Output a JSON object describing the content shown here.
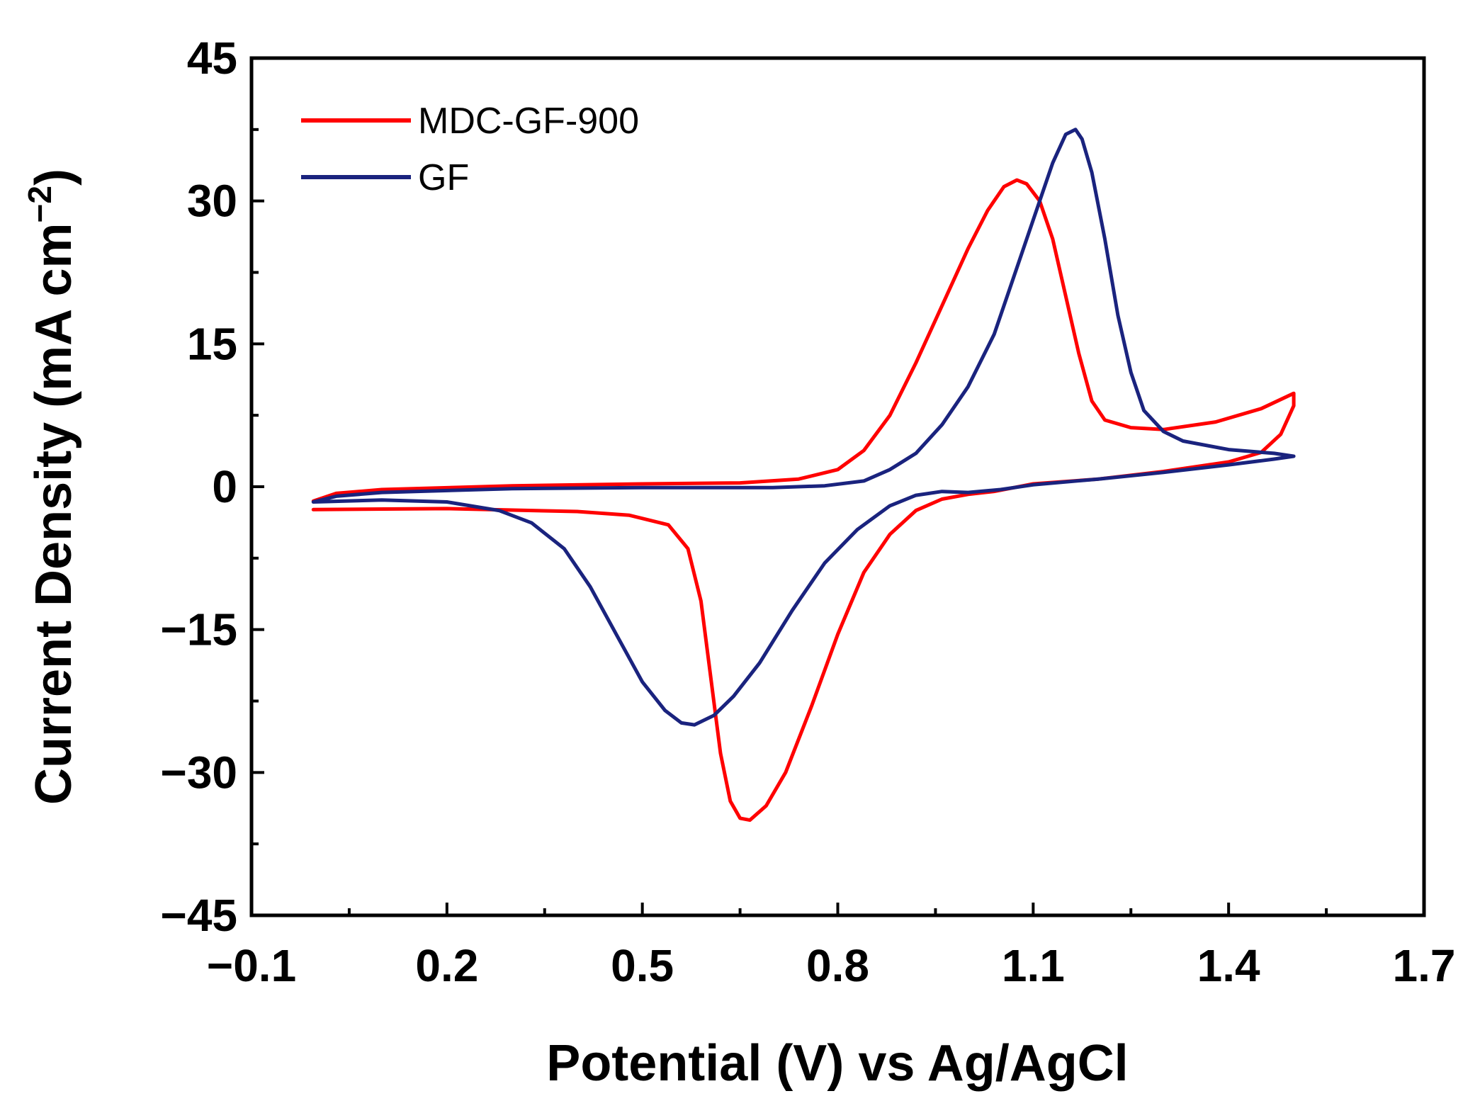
{
  "chart_data": {
    "type": "line",
    "title": "",
    "xlabel": "Potential (V) vs Ag/AgCl",
    "ylabel": "Current Density (mA cm",
    "ylabel_sup": "−2",
    "ylabel_close": ")",
    "xlim": [
      -0.1,
      1.7
    ],
    "ylim": [
      -45,
      45
    ],
    "x_ticks": [
      -0.1,
      0.2,
      0.5,
      0.8,
      1.1,
      1.4,
      1.7
    ],
    "x_tick_labels": [
      "−0.1",
      "0.2",
      "0.5",
      "0.8",
      "1.1",
      "1.4",
      "1.7"
    ],
    "x_minor_ticks": [
      0.05,
      0.35,
      0.65,
      0.95,
      1.25,
      1.55
    ],
    "y_ticks": [
      45,
      30,
      15,
      0,
      -15,
      -30,
      -45
    ],
    "y_tick_labels": [
      "45",
      "30",
      "15",
      "0",
      "−15",
      "−30",
      "−45"
    ],
    "y_minor_ticks": [
      37.5,
      22.5,
      7.5,
      -7.5,
      -22.5,
      -37.5
    ],
    "legend_position": "top-left",
    "series": [
      {
        "name": "MDC-GF-900",
        "color": "#ff0000",
        "points": [
          [
            -0.005,
            -2.4
          ],
          [
            0.2,
            -2.3
          ],
          [
            0.4,
            -2.6
          ],
          [
            0.48,
            -3.0
          ],
          [
            0.54,
            -4.0
          ],
          [
            0.57,
            -6.5
          ],
          [
            0.59,
            -12.0
          ],
          [
            0.605,
            -20.0
          ],
          [
            0.62,
            -28.0
          ],
          [
            0.635,
            -33.0
          ],
          [
            0.65,
            -34.8
          ],
          [
            0.665,
            -35.0
          ],
          [
            0.69,
            -33.5
          ],
          [
            0.72,
            -30.0
          ],
          [
            0.76,
            -23.0
          ],
          [
            0.8,
            -15.5
          ],
          [
            0.84,
            -9.0
          ],
          [
            0.88,
            -5.0
          ],
          [
            0.92,
            -2.5
          ],
          [
            0.96,
            -1.3
          ],
          [
            1.0,
            -0.8
          ],
          [
            1.04,
            -0.5
          ],
          [
            1.1,
            0.3
          ],
          [
            1.2,
            0.8
          ],
          [
            1.3,
            1.6
          ],
          [
            1.4,
            2.6
          ],
          [
            1.45,
            3.6
          ],
          [
            1.48,
            5.5
          ],
          [
            1.5,
            8.5
          ],
          [
            1.5,
            9.8
          ],
          [
            1.45,
            8.2
          ],
          [
            1.38,
            6.8
          ],
          [
            1.3,
            6.0
          ],
          [
            1.25,
            6.2
          ],
          [
            1.21,
            7.0
          ],
          [
            1.19,
            9.0
          ],
          [
            1.17,
            14.0
          ],
          [
            1.15,
            20.0
          ],
          [
            1.13,
            26.0
          ],
          [
            1.11,
            30.0
          ],
          [
            1.09,
            31.8
          ],
          [
            1.075,
            32.2
          ],
          [
            1.055,
            31.5
          ],
          [
            1.03,
            29.0
          ],
          [
            1.0,
            25.0
          ],
          [
            0.96,
            19.0
          ],
          [
            0.92,
            13.0
          ],
          [
            0.88,
            7.5
          ],
          [
            0.84,
            3.8
          ],
          [
            0.8,
            1.8
          ],
          [
            0.74,
            0.8
          ],
          [
            0.65,
            0.4
          ],
          [
            0.5,
            0.3
          ],
          [
            0.3,
            0.1
          ],
          [
            0.1,
            -0.3
          ],
          [
            0.03,
            -0.7
          ],
          [
            -0.005,
            -1.5
          ]
        ]
      },
      {
        "name": "GF",
        "color": "#1a237e",
        "points": [
          [
            -0.005,
            -1.6
          ],
          [
            0.1,
            -1.4
          ],
          [
            0.2,
            -1.6
          ],
          [
            0.28,
            -2.5
          ],
          [
            0.33,
            -3.8
          ],
          [
            0.38,
            -6.5
          ],
          [
            0.42,
            -10.5
          ],
          [
            0.46,
            -15.5
          ],
          [
            0.5,
            -20.5
          ],
          [
            0.535,
            -23.5
          ],
          [
            0.56,
            -24.8
          ],
          [
            0.58,
            -25.0
          ],
          [
            0.61,
            -24.0
          ],
          [
            0.64,
            -22.0
          ],
          [
            0.68,
            -18.5
          ],
          [
            0.73,
            -13.0
          ],
          [
            0.78,
            -8.0
          ],
          [
            0.83,
            -4.5
          ],
          [
            0.88,
            -2.0
          ],
          [
            0.92,
            -0.9
          ],
          [
            0.96,
            -0.5
          ],
          [
            1.0,
            -0.6
          ],
          [
            1.05,
            -0.3
          ],
          [
            1.1,
            0.2
          ],
          [
            1.2,
            0.8
          ],
          [
            1.3,
            1.5
          ],
          [
            1.4,
            2.3
          ],
          [
            1.47,
            2.9
          ],
          [
            1.5,
            3.2
          ],
          [
            1.47,
            3.5
          ],
          [
            1.4,
            3.9
          ],
          [
            1.33,
            4.8
          ],
          [
            1.3,
            5.8
          ],
          [
            1.27,
            8.0
          ],
          [
            1.25,
            12.0
          ],
          [
            1.23,
            18.0
          ],
          [
            1.21,
            26.0
          ],
          [
            1.19,
            33.0
          ],
          [
            1.175,
            36.5
          ],
          [
            1.165,
            37.5
          ],
          [
            1.15,
            37.0
          ],
          [
            1.13,
            34.0
          ],
          [
            1.1,
            28.0
          ],
          [
            1.07,
            22.0
          ],
          [
            1.04,
            16.0
          ],
          [
            1.0,
            10.5
          ],
          [
            0.96,
            6.5
          ],
          [
            0.92,
            3.5
          ],
          [
            0.88,
            1.8
          ],
          [
            0.84,
            0.6
          ],
          [
            0.78,
            0.1
          ],
          [
            0.7,
            -0.1
          ],
          [
            0.5,
            -0.1
          ],
          [
            0.3,
            -0.2
          ],
          [
            0.1,
            -0.6
          ],
          [
            0.03,
            -1.0
          ],
          [
            -0.005,
            -1.6
          ]
        ]
      }
    ]
  }
}
